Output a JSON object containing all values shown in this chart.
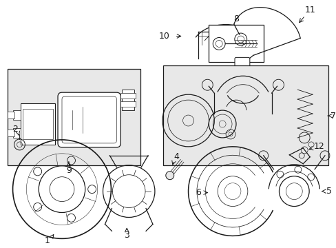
{
  "background_color": "#ffffff",
  "line_color": "#1a1a1a",
  "gray_fill": "#e8e8e8",
  "figure_width": 4.89,
  "figure_height": 3.6,
  "dpi": 100
}
